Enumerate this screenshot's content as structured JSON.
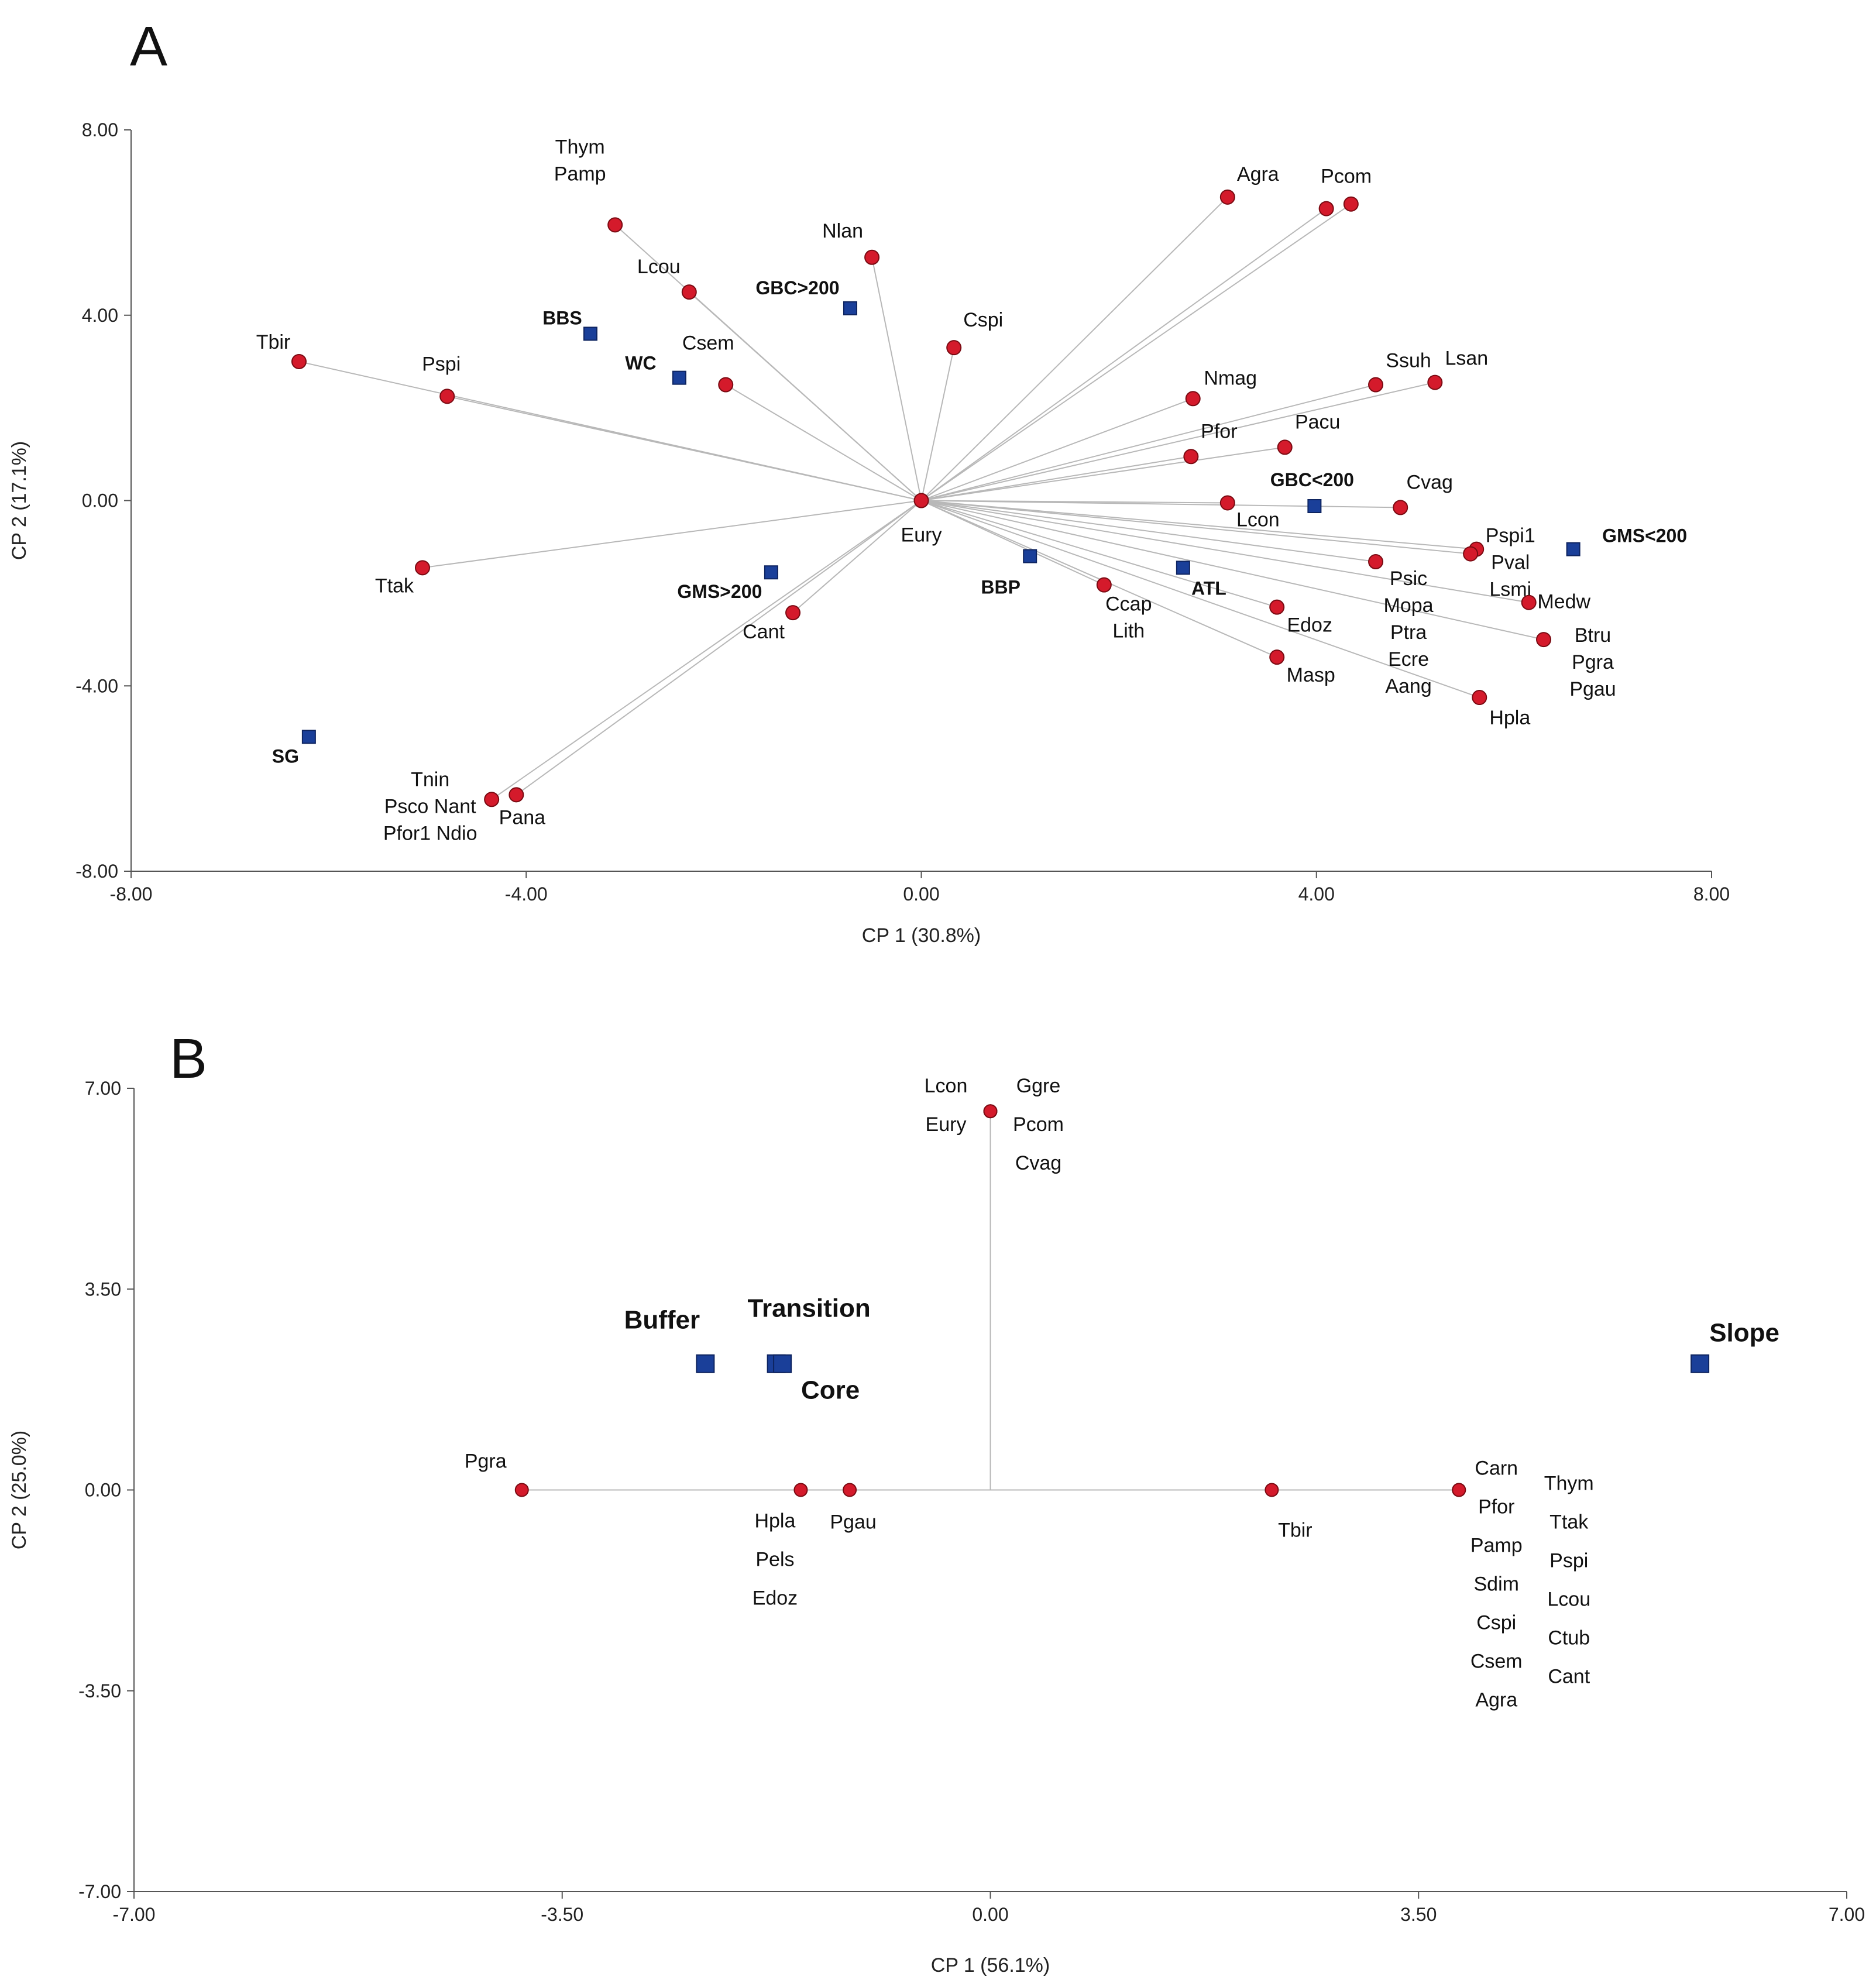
{
  "colors": {
    "species": "#d41a2b",
    "habitat": "#1a3f99",
    "vector": "#b8b8b8"
  },
  "chart_data": [
    {
      "type": "scatter",
      "panel": "A",
      "title": "",
      "xlabel": "CP 1 (30.8%)",
      "ylabel": "CP 2 (17.1%)",
      "xlim": [
        -8,
        8
      ],
      "ylim": [
        -8,
        8
      ],
      "xticks": [
        -8,
        -4,
        0,
        4,
        8
      ],
      "yticks": [
        -8,
        -4,
        0,
        4,
        8
      ],
      "xtick_labels": [
        "-8.00",
        "-4.00",
        "0.00",
        "4.00",
        "8.00"
      ],
      "ytick_labels": [
        "-8.00",
        "-4.00",
        "0.00",
        "4.00",
        "8.00"
      ],
      "origin_label": "Eury",
      "species": [
        {
          "label": "Thym\nPamp",
          "x": -3.1,
          "y": 5.95
        },
        {
          "label": "Nlan",
          "x": -0.5,
          "y": 5.25
        },
        {
          "label": "Lcou",
          "x": -2.35,
          "y": 4.5
        },
        {
          "label": "Cspi",
          "x": 0.33,
          "y": 3.3
        },
        {
          "label": "Tbir",
          "x": -6.3,
          "y": 3.0
        },
        {
          "label": "Pspi",
          "x": -4.8,
          "y": 2.25
        },
        {
          "label": "Csem",
          "x": -1.98,
          "y": 2.5
        },
        {
          "label": "Agra",
          "x": 3.1,
          "y": 6.55
        },
        {
          "label": "Pcom",
          "x": 4.1,
          "y": 6.3
        },
        {
          "label": "",
          "x": 4.35,
          "y": 6.4
        },
        {
          "label": "Nmag",
          "x": 2.75,
          "y": 2.2
        },
        {
          "label": "Ssuh",
          "x": 4.6,
          "y": 2.5
        },
        {
          "label": "Lsan",
          "x": 5.2,
          "y": 2.55
        },
        {
          "label": "Pfor",
          "x": 2.73,
          "y": 0.95
        },
        {
          "label": "Pacu",
          "x": 3.68,
          "y": 1.15
        },
        {
          "label": "Lcon",
          "x": 3.1,
          "y": -0.05
        },
        {
          "label": "Cvag",
          "x": 4.85,
          "y": -0.15
        },
        {
          "label": "Pspi1\nPval\nLsmi",
          "x": 5.62,
          "y": -1.05
        },
        {
          "label": "",
          "x": 5.56,
          "y": -1.15
        },
        {
          "label": "Psic\nMopa\nPtra\nEcre\nAang",
          "x": 4.6,
          "y": -1.32
        },
        {
          "label": "Medw",
          "x": 6.15,
          "y": -2.2
        },
        {
          "label": "Btru\nPgra\nPgau",
          "x": 6.3,
          "y": -3.0
        },
        {
          "label": "Ccap\nLith",
          "x": 1.85,
          "y": -1.82
        },
        {
          "label": "Edoz",
          "x": 3.6,
          "y": -2.3
        },
        {
          "label": "Masp",
          "x": 3.6,
          "y": -3.38
        },
        {
          "label": "Hpla",
          "x": 5.65,
          "y": -4.25
        },
        {
          "label": "Ttak",
          "x": -5.05,
          "y": -1.45
        },
        {
          "label": "Cant",
          "x": -1.3,
          "y": -2.42
        },
        {
          "label": "Tnin\nPsco Nant\nPfor1 Ndio",
          "x": -4.35,
          "y": -6.45
        },
        {
          "label": "Pana",
          "x": -4.1,
          "y": -6.35
        }
      ],
      "habitats": [
        {
          "label": "BBS",
          "x": -3.35,
          "y": 3.6
        },
        {
          "label": "WC",
          "x": -2.45,
          "y": 2.65
        },
        {
          "label": "GBC>200",
          "x": -0.72,
          "y": 4.15
        },
        {
          "label": "GBC<200",
          "x": 3.98,
          "y": -0.12
        },
        {
          "label": "GMS<200",
          "x": 6.6,
          "y": -1.05
        },
        {
          "label": "GMS>200",
          "x": -1.52,
          "y": -1.55
        },
        {
          "label": "BBP",
          "x": 1.1,
          "y": -1.2
        },
        {
          "label": "ATL",
          "x": 2.65,
          "y": -1.45
        },
        {
          "label": "SG",
          "x": -6.2,
          "y": -5.1
        }
      ]
    },
    {
      "type": "scatter",
      "panel": "B",
      "title": "",
      "xlabel": "CP 1 (56.1%)",
      "ylabel": "CP 2 (25.0%)",
      "xlim": [
        -7,
        7
      ],
      "ylim": [
        -7,
        7
      ],
      "xticks": [
        -7,
        -3.5,
        0,
        3.5,
        7
      ],
      "yticks": [
        -7,
        -3.5,
        0,
        3.5,
        7
      ],
      "xtick_labels": [
        "-7.00",
        "-3.50",
        "0.00",
        "3.50",
        "7.00"
      ],
      "ytick_labels": [
        "-7.00",
        "-3.50",
        "0.00",
        "3.50",
        "7.00"
      ],
      "species": [
        {
          "label": "Lcon\nEury",
          "x": 0.0,
          "y": 6.6
        },
        {
          "label": "Ggre\nPcom\nCvag",
          "x": 0.0,
          "y": 6.6
        },
        {
          "label": "Pgra",
          "x": -3.83,
          "y": 0.0
        },
        {
          "label": "Hpla\nPels\nEdoz",
          "x": -1.55,
          "y": 0.0
        },
        {
          "label": "Pgau",
          "x": -1.15,
          "y": 0.0
        },
        {
          "label": "Tbir",
          "x": 2.3,
          "y": 0.0
        },
        {
          "label": "Carn\nPfor\nPamp\nSdim\nCspi\nCsem\nAgra",
          "x": 3.83,
          "y": 0.0
        },
        {
          "label": "Thym\nTtak\nPspi\nLcou\nCtub\nCant",
          "x": 3.83,
          "y": 0.0
        }
      ],
      "habitats": [
        {
          "label": "Buffer",
          "x": -2.33,
          "y": 2.2
        },
        {
          "label": "Transition",
          "x": -1.75,
          "y": 2.2
        },
        {
          "label": "Core",
          "x": -1.7,
          "y": 2.2
        },
        {
          "label": "Slope",
          "x": 5.8,
          "y": 2.2
        }
      ]
    }
  ]
}
